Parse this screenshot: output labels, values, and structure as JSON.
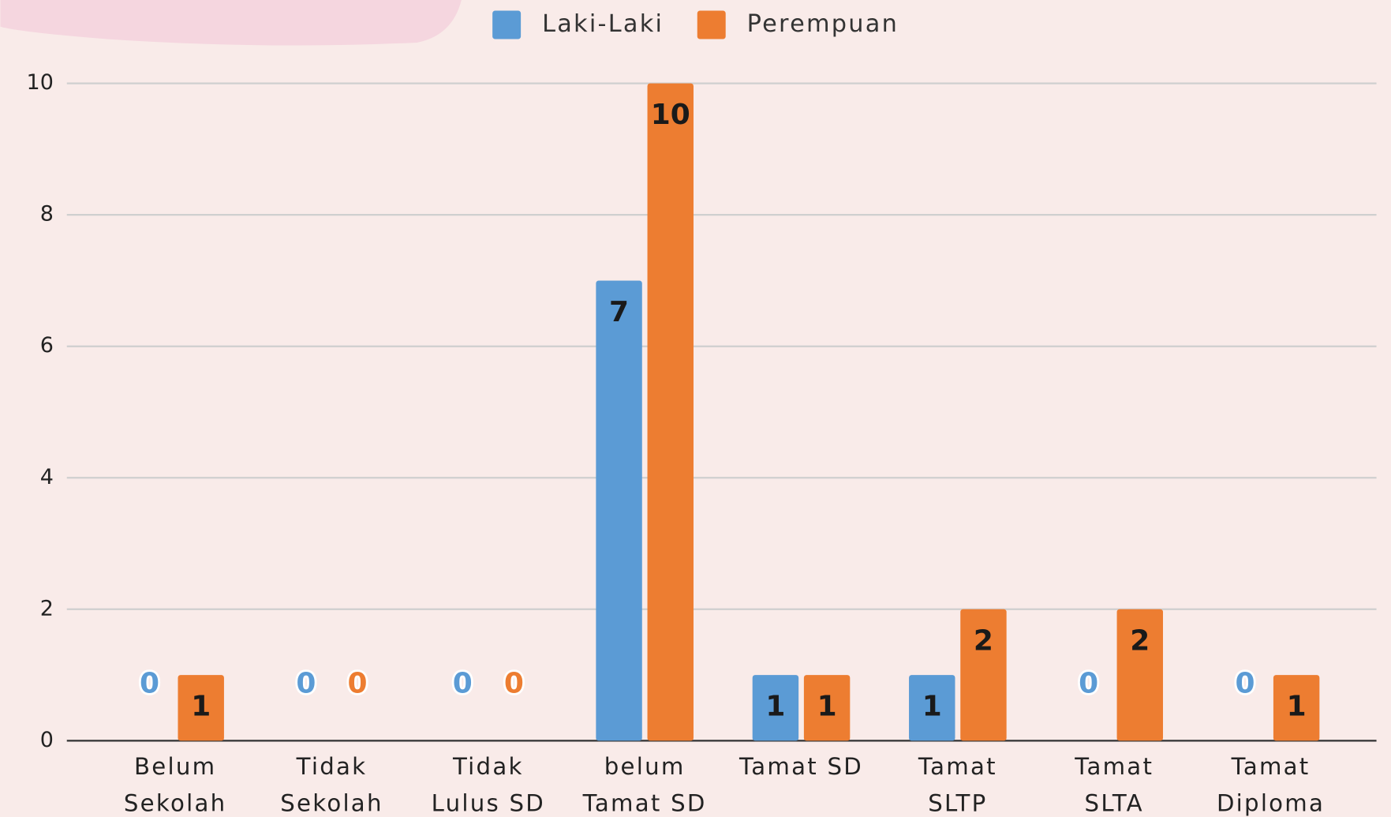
{
  "chart_data": {
    "type": "bar",
    "categories": [
      [
        "Belum",
        "Sekolah"
      ],
      [
        "Tidak",
        "Sekolah"
      ],
      [
        "Tidak",
        "Lulus SD"
      ],
      [
        "belum",
        "Tamat SD"
      ],
      [
        "Tamat SD"
      ],
      [
        "Tamat",
        "SLTP"
      ],
      [
        "Tamat",
        "SLTA"
      ],
      [
        "Tamat",
        "Diploma"
      ]
    ],
    "series": [
      {
        "name": "Laki-Laki",
        "color": "#5b9bd5",
        "values": [
          0,
          0,
          0,
          7,
          1,
          1,
          0,
          0
        ]
      },
      {
        "name": "Perempuan",
        "color": "#ed7d31",
        "values": [
          1,
          0,
          0,
          10,
          1,
          2,
          2,
          1
        ]
      }
    ],
    "ylim": [
      0,
      10
    ],
    "yticks": [
      0,
      2,
      4,
      6,
      8,
      10
    ],
    "grid": true,
    "legend": "top"
  }
}
